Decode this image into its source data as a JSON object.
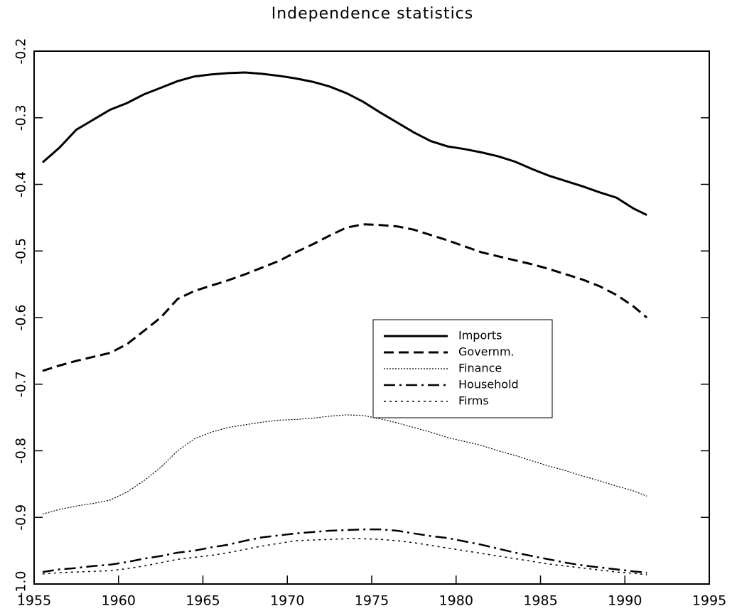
{
  "chart_data": {
    "type": "line",
    "title": "Independence statistics",
    "x": [
      1955.5,
      1956.5,
      1957.5,
      1958.5,
      1959.5,
      1960.5,
      1961.5,
      1962.5,
      1963.5,
      1964.5,
      1965.5,
      1966.5,
      1967.5,
      1968.5,
      1969.5,
      1970.5,
      1971.5,
      1972.5,
      1973.5,
      1974.5,
      1975.5,
      1976.5,
      1977.5,
      1978.5,
      1979.5,
      1980.5,
      1981.5,
      1982.5,
      1983.5,
      1984.5,
      1985.5,
      1986.5,
      1987.5,
      1988.5,
      1989.5,
      1990.5,
      1991.3
    ],
    "series": [
      {
        "name": "Imports",
        "color": "#000000",
        "style": "solid",
        "values": [
          -0.367,
          -0.345,
          -0.318,
          -0.303,
          -0.288,
          -0.278,
          -0.265,
          -0.255,
          -0.245,
          -0.238,
          -0.235,
          -0.233,
          -0.232,
          -0.234,
          -0.237,
          -0.241,
          -0.246,
          -0.253,
          -0.263,
          -0.276,
          -0.292,
          -0.307,
          -0.322,
          -0.335,
          -0.343,
          -0.347,
          -0.352,
          -0.358,
          -0.366,
          -0.377,
          -0.387,
          -0.395,
          -0.403,
          -0.412,
          -0.42,
          -0.436,
          -0.446
        ]
      },
      {
        "name": "Governm.",
        "color": "#000000",
        "style": "dashed",
        "values": [
          -0.68,
          -0.672,
          -0.665,
          -0.659,
          -0.653,
          -0.64,
          -0.62,
          -0.6,
          -0.572,
          -0.56,
          -0.552,
          -0.544,
          -0.535,
          -0.525,
          -0.515,
          -0.502,
          -0.49,
          -0.477,
          -0.465,
          -0.46,
          -0.461,
          -0.463,
          -0.468,
          -0.476,
          -0.484,
          -0.493,
          -0.502,
          -0.508,
          -0.514,
          -0.52,
          -0.527,
          -0.535,
          -0.543,
          -0.553,
          -0.566,
          -0.583,
          -0.6
        ]
      },
      {
        "name": "Finance",
        "color": "#000000",
        "style": "fine-dotted",
        "values": [
          -0.895,
          -0.888,
          -0.883,
          -0.879,
          -0.874,
          -0.862,
          -0.845,
          -0.825,
          -0.8,
          -0.782,
          -0.772,
          -0.765,
          -0.761,
          -0.757,
          -0.754,
          -0.753,
          -0.751,
          -0.748,
          -0.746,
          -0.747,
          -0.752,
          -0.758,
          -0.765,
          -0.772,
          -0.78,
          -0.786,
          -0.792,
          -0.8,
          -0.807,
          -0.815,
          -0.823,
          -0.83,
          -0.838,
          -0.845,
          -0.853,
          -0.86,
          -0.868
        ]
      },
      {
        "name": "Household",
        "color": "#000000",
        "style": "dashdot",
        "values": [
          -0.982,
          -0.978,
          -0.976,
          -0.973,
          -0.971,
          -0.967,
          -0.962,
          -0.958,
          -0.953,
          -0.95,
          -0.945,
          -0.941,
          -0.935,
          -0.93,
          -0.927,
          -0.924,
          -0.922,
          -0.92,
          -0.919,
          -0.918,
          -0.918,
          -0.92,
          -0.924,
          -0.928,
          -0.931,
          -0.936,
          -0.941,
          -0.947,
          -0.953,
          -0.958,
          -0.963,
          -0.968,
          -0.972,
          -0.975,
          -0.978,
          -0.981,
          -0.983
        ]
      },
      {
        "name": "Firms",
        "color": "#000000",
        "style": "dotted",
        "values": [
          -0.985,
          -0.983,
          -0.982,
          -0.981,
          -0.98,
          -0.977,
          -0.973,
          -0.968,
          -0.963,
          -0.96,
          -0.957,
          -0.953,
          -0.948,
          -0.943,
          -0.939,
          -0.935,
          -0.934,
          -0.933,
          -0.932,
          -0.932,
          -0.933,
          -0.935,
          -0.938,
          -0.942,
          -0.946,
          -0.95,
          -0.954,
          -0.958,
          -0.962,
          -0.966,
          -0.97,
          -0.973,
          -0.976,
          -0.979,
          -0.982,
          -0.984,
          -0.986
        ]
      }
    ],
    "xlim": [
      1955,
      1995
    ],
    "xticks": [
      1955,
      1960,
      1965,
      1970,
      1975,
      1980,
      1985,
      1990,
      1995
    ],
    "ylim": [
      -1.0,
      -0.2
    ],
    "yticks": [
      {
        "value": -1.0,
        "label": "-1.0"
      },
      -0.9,
      -0.8,
      -0.7,
      -0.6,
      -0.5,
      -0.4,
      -0.3,
      -0.2
    ],
    "grid": false,
    "legend": "center-right"
  }
}
